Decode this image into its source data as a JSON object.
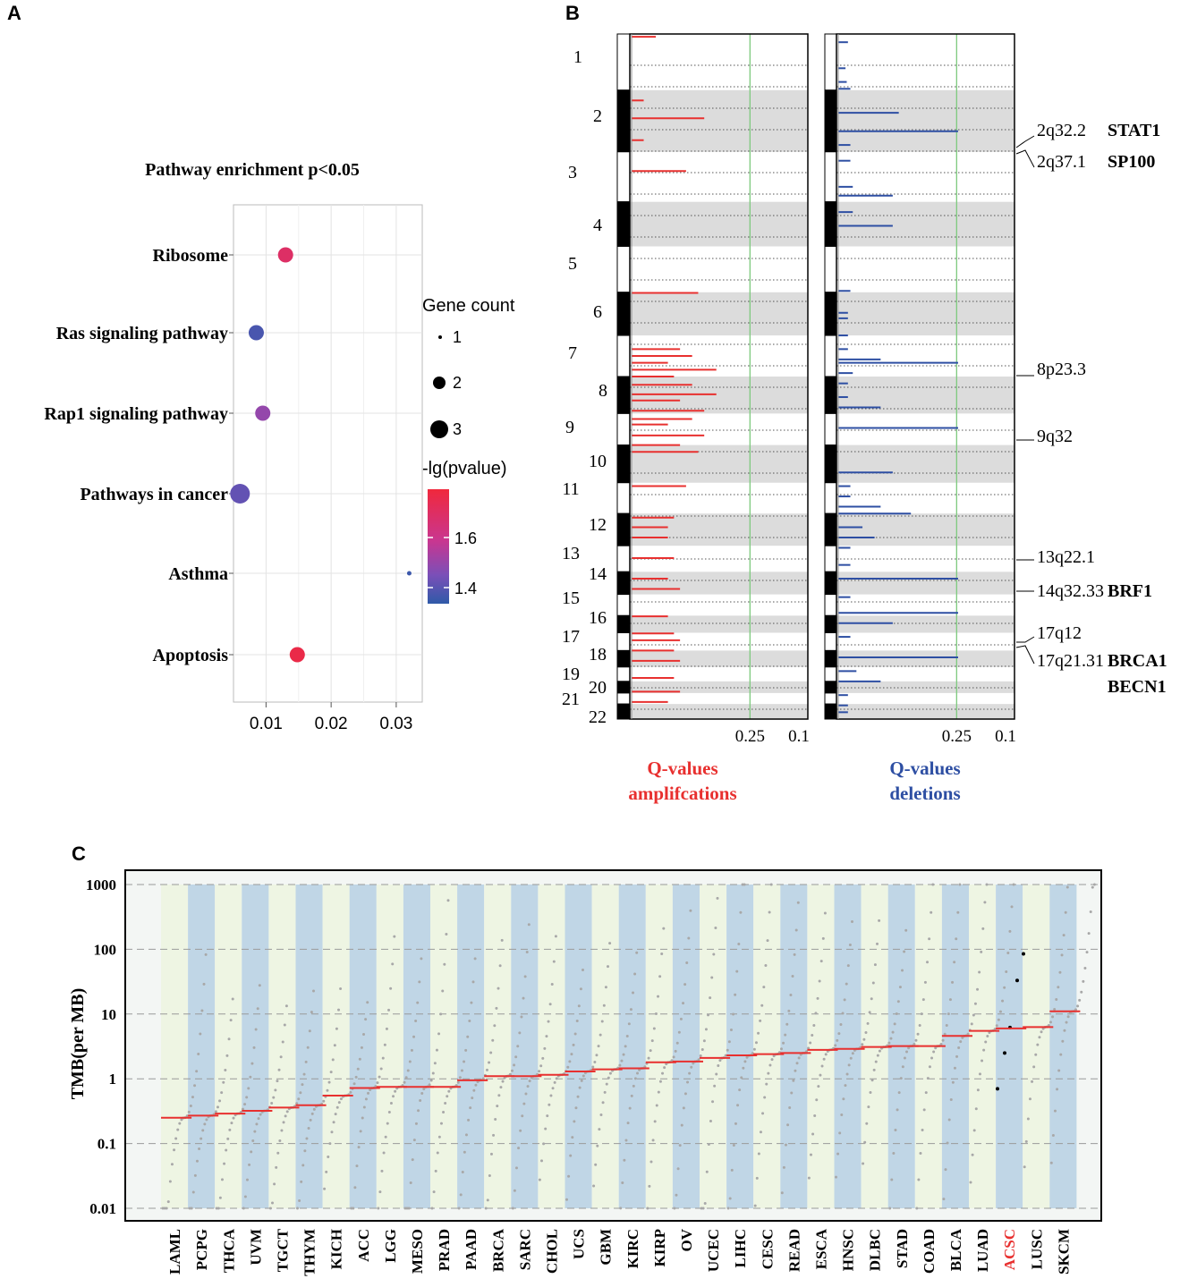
{
  "panels": {
    "a_letter": "A",
    "b_letter": "B",
    "c_letter": "C"
  },
  "colors": {
    "amp": "#e8302f",
    "del": "#2e4fa3",
    "band_gray": "#dcdcdc",
    "green_line": "#7dc97d",
    "tmb_green": "#eef5e3",
    "tmb_blue": "#c0d6e6",
    "tmb_bg": "#f3f6f4",
    "median": "#e8302f",
    "dots": "#a8a8a8",
    "acsc_label": "#e8302f",
    "grad_low": "#2f5aa8",
    "grad_mid": "#a046b0",
    "grad_high": "#f0283c"
  },
  "chart_data": [
    {
      "panel": "A",
      "type": "scatter",
      "title": "Pathway enrichment p<0.05",
      "xlabel": "",
      "ylabel": "",
      "xlim": [
        0.005,
        0.034
      ],
      "xticks": [
        0.01,
        0.02,
        0.03
      ],
      "xtick_labels": [
        "0.01",
        "0.02",
        "0.03"
      ],
      "points": [
        {
          "pathway": "Ribosome",
          "x": 0.013,
          "count": 2,
          "neglogp": 1.68
        },
        {
          "pathway": "Ras signaling pathway",
          "x": 0.0085,
          "count": 2,
          "neglogp": 1.36
        },
        {
          "pathway": "Rap1 signaling pathway",
          "x": 0.0095,
          "count": 2,
          "neglogp": 1.48
        },
        {
          "pathway": "Pathways in cancer",
          "x": 0.006,
          "count": 3,
          "neglogp": 1.4
        },
        {
          "pathway": "Asthma",
          "x": 0.032,
          "count": 1,
          "neglogp": 1.34
        },
        {
          "pathway": "Apoptosis",
          "x": 0.0148,
          "count": 2,
          "neglogp": 1.75
        }
      ],
      "size_legend": {
        "title": "Gene count",
        "values": [
          "1",
          "2",
          "3"
        ]
      },
      "color_legend": {
        "title": "-lg(pvalue)",
        "ticks": [
          "1.6",
          "1.4"
        ],
        "range": [
          1.32,
          1.78
        ]
      }
    },
    {
      "panel": "B",
      "type": "bar",
      "title": "",
      "chromosomes": [
        "1",
        "2",
        "3",
        "4",
        "5",
        "6",
        "7",
        "8",
        "9",
        "10",
        "11",
        "12",
        "13",
        "14",
        "15",
        "16",
        "17",
        "18",
        "19",
        "20",
        "21",
        "22"
      ],
      "x_ticks": [
        "0.25",
        "0.1"
      ],
      "amp_label_line1": "Q-values",
      "amp_label_line2": "amplifcations",
      "del_label_line1": "Q-values",
      "del_label_line2": "deletions",
      "amplification_peaks": [
        {
          "pos": 0.004,
          "q": 0.2
        },
        {
          "pos": 0.097,
          "q": 0.1
        },
        {
          "pos": 0.123,
          "q": 0.6
        },
        {
          "pos": 0.155,
          "q": 0.1
        },
        {
          "pos": 0.2,
          "q": 0.45
        },
        {
          "pos": 0.378,
          "q": 0.55
        },
        {
          "pos": 0.46,
          "q": 0.4
        },
        {
          "pos": 0.47,
          "q": 0.5
        },
        {
          "pos": 0.48,
          "q": 0.3
        },
        {
          "pos": 0.49,
          "q": 0.7
        },
        {
          "pos": 0.5,
          "q": 0.35
        },
        {
          "pos": 0.512,
          "q": 0.5
        },
        {
          "pos": 0.526,
          "q": 0.7
        },
        {
          "pos": 0.535,
          "q": 0.4
        },
        {
          "pos": 0.55,
          "q": 0.6
        },
        {
          "pos": 0.562,
          "q": 0.5
        },
        {
          "pos": 0.57,
          "q": 0.3
        },
        {
          "pos": 0.586,
          "q": 0.6
        },
        {
          "pos": 0.6,
          "q": 0.4
        },
        {
          "pos": 0.61,
          "q": 0.55
        },
        {
          "pos": 0.66,
          "q": 0.45
        },
        {
          "pos": 0.706,
          "q": 0.35
        },
        {
          "pos": 0.72,
          "q": 0.3
        },
        {
          "pos": 0.735,
          "q": 0.3
        },
        {
          "pos": 0.765,
          "q": 0.35
        },
        {
          "pos": 0.795,
          "q": 0.3
        },
        {
          "pos": 0.81,
          "q": 0.4
        },
        {
          "pos": 0.85,
          "q": 0.3
        },
        {
          "pos": 0.875,
          "q": 0.35
        },
        {
          "pos": 0.885,
          "q": 0.4
        },
        {
          "pos": 0.9,
          "q": 0.35
        },
        {
          "pos": 0.915,
          "q": 0.4
        },
        {
          "pos": 0.94,
          "q": 0.35
        },
        {
          "pos": 0.96,
          "q": 0.4
        },
        {
          "pos": 0.975,
          "q": 0.3
        }
      ],
      "deletion_peaks": [
        {
          "pos": 0.012,
          "q": 0.08
        },
        {
          "pos": 0.05,
          "q": 0.06
        },
        {
          "pos": 0.07,
          "q": 0.07
        },
        {
          "pos": 0.08,
          "q": 0.1
        },
        {
          "pos": 0.115,
          "q": 0.5
        },
        {
          "pos": 0.142,
          "q": 0.99
        },
        {
          "pos": 0.162,
          "q": 0.1
        },
        {
          "pos": 0.185,
          "q": 0.1
        },
        {
          "pos": 0.223,
          "q": 0.12
        },
        {
          "pos": 0.236,
          "q": 0.45
        },
        {
          "pos": 0.26,
          "q": 0.12
        },
        {
          "pos": 0.28,
          "q": 0.45
        },
        {
          "pos": 0.375,
          "q": 0.1
        },
        {
          "pos": 0.407,
          "q": 0.08
        },
        {
          "pos": 0.415,
          "q": 0.08
        },
        {
          "pos": 0.44,
          "q": 0.08
        },
        {
          "pos": 0.46,
          "q": 0.08
        },
        {
          "pos": 0.475,
          "q": 0.35
        },
        {
          "pos": 0.48,
          "q": 0.99
        },
        {
          "pos": 0.495,
          "q": 0.12
        },
        {
          "pos": 0.51,
          "q": 0.08
        },
        {
          "pos": 0.53,
          "q": 0.08
        },
        {
          "pos": 0.545,
          "q": 0.35
        },
        {
          "pos": 0.575,
          "q": 0.99
        },
        {
          "pos": 0.64,
          "q": 0.45
        },
        {
          "pos": 0.66,
          "q": 0.1
        },
        {
          "pos": 0.675,
          "q": 0.1
        },
        {
          "pos": 0.69,
          "q": 0.35
        },
        {
          "pos": 0.7,
          "q": 0.6
        },
        {
          "pos": 0.72,
          "q": 0.2
        },
        {
          "pos": 0.735,
          "q": 0.3
        },
        {
          "pos": 0.75,
          "q": 0.1
        },
        {
          "pos": 0.775,
          "q": 0.1
        },
        {
          "pos": 0.795,
          "q": 0.99
        },
        {
          "pos": 0.822,
          "q": 0.1
        },
        {
          "pos": 0.845,
          "q": 0.99
        },
        {
          "pos": 0.86,
          "q": 0.45
        },
        {
          "pos": 0.88,
          "q": 0.1
        },
        {
          "pos": 0.91,
          "q": 0.99
        },
        {
          "pos": 0.93,
          "q": 0.15
        },
        {
          "pos": 0.945,
          "q": 0.35
        },
        {
          "pos": 0.965,
          "q": 0.08
        },
        {
          "pos": 0.98,
          "q": 0.08
        },
        {
          "pos": 0.99,
          "q": 0.08
        }
      ],
      "annotations": [
        {
          "region": "2q32.2",
          "gene": "STAT1"
        },
        {
          "region": "2q37.1",
          "gene": "SP100"
        },
        {
          "region": "8p23.3",
          "gene": ""
        },
        {
          "region": "9q32",
          "gene": ""
        },
        {
          "region": "13q22.1",
          "gene": ""
        },
        {
          "region": "14q32.33",
          "gene": "BRF1"
        },
        {
          "region": "17q12",
          "gene": ""
        },
        {
          "region": "17q21.31",
          "gene": "BRCA1"
        },
        {
          "region": "",
          "gene": "BECN1"
        }
      ]
    },
    {
      "panel": "C",
      "type": "scatter",
      "title": "",
      "xlabel": "",
      "ylabel": "TMB(per MB)",
      "yscale": "log",
      "ylim": [
        0.01,
        1000
      ],
      "yticks": [
        "0.01",
        "0.1",
        "1",
        "10",
        "100",
        "1000"
      ],
      "categories": [
        "LAML",
        "PCPG",
        "THCA",
        "UVM",
        "TGCT",
        "THYM",
        "KICH",
        "ACC",
        "LGG",
        "MESO",
        "PRAD",
        "PAAD",
        "BRCA",
        "SARC",
        "CHOL",
        "UCS",
        "GBM",
        "KIRC",
        "KIRP",
        "OV",
        "UCEC",
        "LIHC",
        "CESC",
        "READ",
        "ESCA",
        "HNSC",
        "DLBC",
        "STAD",
        "COAD",
        "BLCA",
        "LUAD",
        "ACSC",
        "LUSC",
        "SKCM"
      ],
      "medians": [
        0.25,
        0.27,
        0.29,
        0.32,
        0.36,
        0.39,
        0.55,
        0.72,
        0.75,
        0.75,
        0.75,
        0.95,
        1.1,
        1.1,
        1.15,
        1.3,
        1.4,
        1.45,
        1.8,
        1.85,
        2.1,
        2.3,
        2.4,
        2.5,
        2.8,
        2.9,
        3.1,
        3.2,
        3.2,
        4.6,
        5.5,
        6.0,
        6.3,
        11.0
      ],
      "acsc_points": [
        85,
        33,
        6.2,
        2.5,
        0.7
      ],
      "highlighted": "ACSC"
    }
  ]
}
